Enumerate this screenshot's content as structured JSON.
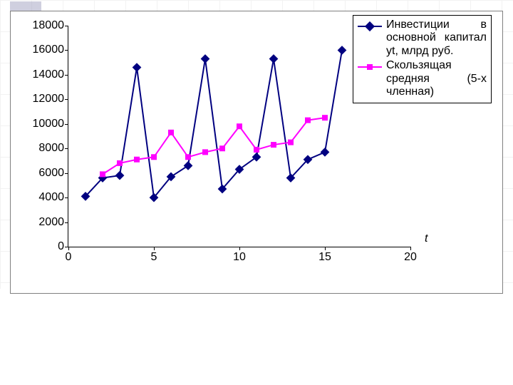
{
  "chart": {
    "type": "line",
    "background_color": "#ffffff",
    "border_color": "#808080",
    "plot": {
      "xlim": [
        0,
        20
      ],
      "ylim": [
        0,
        18000
      ],
      "xtick_step": 5,
      "ytick_step": 2000,
      "x_ticks": [
        0,
        5,
        10,
        15,
        20
      ],
      "y_ticks": [
        0,
        2000,
        4000,
        6000,
        8000,
        10000,
        12000,
        14000,
        16000,
        18000
      ],
      "axis_color": "#000000",
      "grid": false,
      "x_axis_title": "t",
      "x_axis_title_fontsize": 16,
      "label_fontsize": 16
    },
    "series": [
      {
        "id": "investments",
        "label": "Инвестиции в основной капитал yt, млрд руб.",
        "x": [
          1,
          2,
          3,
          4,
          5,
          6,
          7,
          8,
          9,
          10,
          11,
          12,
          13,
          14,
          15,
          16
        ],
        "y": [
          4100,
          5600,
          5800,
          14600,
          4000,
          5700,
          6600,
          15300,
          4700,
          6300,
          7300,
          15300,
          5600,
          7100,
          7700,
          16000
        ],
        "line_color": "#000080",
        "line_width": 2,
        "marker": "diamond",
        "marker_size": 9,
        "marker_color": "#000080"
      },
      {
        "id": "moving_avg",
        "label": "Скользящая средняя      (5-х членная)",
        "x": [
          2,
          3,
          4,
          5,
          6,
          7,
          8,
          9,
          10,
          11,
          12,
          13,
          14,
          15
        ],
        "y": [
          5900,
          6800,
          7100,
          7300,
          9300,
          7300,
          7700,
          8000,
          9800,
          7900,
          8300,
          8500,
          10300,
          10500
        ],
        "line_color": "#ff00ff",
        "line_width": 2,
        "marker": "square",
        "marker_size": 8,
        "marker_color": "#ff00ff"
      }
    ]
  },
  "legend": {
    "position": "top-right",
    "border_color": "#000000",
    "background": "#ffffff",
    "fontsize": 16,
    "items": [
      {
        "series": "investments",
        "label": "Инвестиции в основной капитал yt, млрд руб."
      },
      {
        "series": "moving_avg",
        "label": "Скользящая средняя      (5-х членная)"
      }
    ]
  }
}
